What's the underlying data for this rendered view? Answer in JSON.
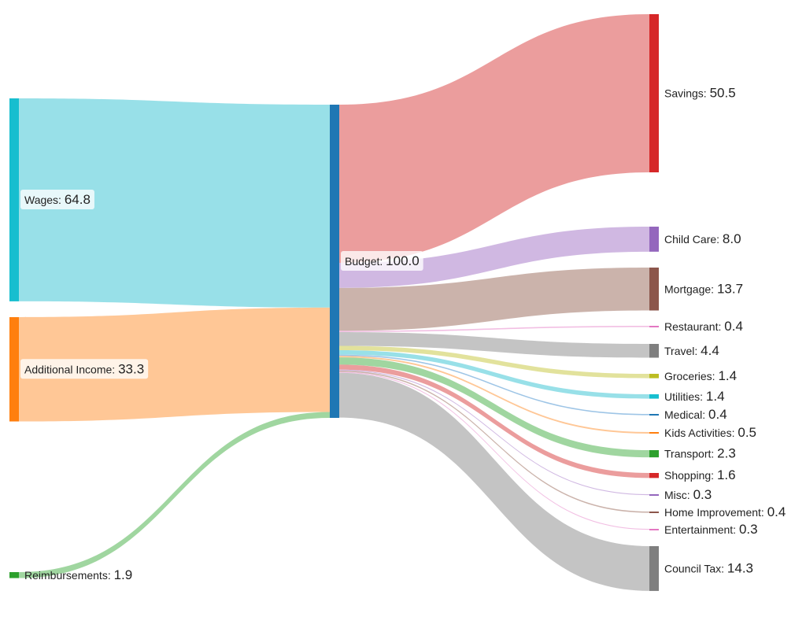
{
  "chart_data": {
    "type": "sankey",
    "title": "",
    "value_scale_total": 100.0,
    "nodes": [
      {
        "id": "wages",
        "name": "Wages",
        "value": "64.8",
        "num": 64.8,
        "column": 0,
        "color": "#17becf",
        "link_color": "#98e0e8",
        "label_box": true
      },
      {
        "id": "additional",
        "name": "Additional Income",
        "value": "33.3",
        "num": 33.3,
        "column": 0,
        "color": "#ff7f0e",
        "link_color": "#ffc796",
        "label_box": true
      },
      {
        "id": "reimb",
        "name": "Reimbursements",
        "value": "1.9",
        "num": 1.9,
        "column": 0,
        "color": "#2ca02c",
        "link_color": "#a0d6a0",
        "label_box": false
      },
      {
        "id": "budget",
        "name": "Budget",
        "value": "100.0",
        "num": 100.0,
        "column": 1,
        "color": "#1f77b4",
        "link_color": "#9ec5e6",
        "label_box": true
      },
      {
        "id": "savings",
        "name": "Savings",
        "value": "50.5",
        "num": 50.5,
        "column": 2,
        "color": "#d62728",
        "link_color": "#eb9d9d"
      },
      {
        "id": "childcare",
        "name": "Child Care",
        "value": "8.0",
        "num": 8.0,
        "column": 2,
        "color": "#9467bd",
        "link_color": "#d0b8e2"
      },
      {
        "id": "mortgage",
        "name": "Mortgage",
        "value": "13.7",
        "num": 13.7,
        "column": 2,
        "color": "#8c564b",
        "link_color": "#cbb3ab"
      },
      {
        "id": "restaurant",
        "name": "Restaurant",
        "value": "0.4",
        "num": 0.4,
        "column": 2,
        "color": "#e377c2",
        "link_color": "#f2bfe3"
      },
      {
        "id": "travel",
        "name": "Travel",
        "value": "4.4",
        "num": 4.4,
        "column": 2,
        "color": "#7f7f7f",
        "link_color": "#c4c4c4"
      },
      {
        "id": "groceries",
        "name": "Groceries",
        "value": "1.4",
        "num": 1.4,
        "column": 2,
        "color": "#bcbd22",
        "link_color": "#e2e29c"
      },
      {
        "id": "utilities",
        "name": "Utilities",
        "value": "1.4",
        "num": 1.4,
        "column": 2,
        "color": "#17becf",
        "link_color": "#98e0e8"
      },
      {
        "id": "medical",
        "name": "Medical",
        "value": "0.4",
        "num": 0.4,
        "column": 2,
        "color": "#1f77b4",
        "link_color": "#9ec5e6"
      },
      {
        "id": "kids",
        "name": "Kids Activities",
        "value": "0.5",
        "num": 0.5,
        "column": 2,
        "color": "#ff7f0e",
        "link_color": "#ffc796"
      },
      {
        "id": "transport",
        "name": "Transport",
        "value": "2.3",
        "num": 2.3,
        "column": 2,
        "color": "#2ca02c",
        "link_color": "#a0d6a0"
      },
      {
        "id": "shopping",
        "name": "Shopping",
        "value": "1.6",
        "num": 1.6,
        "column": 2,
        "color": "#d62728",
        "link_color": "#eb9d9d"
      },
      {
        "id": "misc",
        "name": "Misc",
        "value": "0.3",
        "num": 0.3,
        "column": 2,
        "color": "#9467bd",
        "link_color": "#d0b8e2"
      },
      {
        "id": "homeimp",
        "name": "Home Improvement",
        "value": "0.4",
        "num": 0.4,
        "column": 2,
        "color": "#8c564b",
        "link_color": "#cbb3ab"
      },
      {
        "id": "entertainment",
        "name": "Entertainment",
        "value": "0.3",
        "num": 0.3,
        "column": 2,
        "color": "#e377c2",
        "link_color": "#f2bfe3"
      },
      {
        "id": "counciltax",
        "name": "Council Tax",
        "value": "14.3",
        "num": 14.3,
        "column": 2,
        "color": "#7f7f7f",
        "link_color": "#c4c4c4"
      }
    ],
    "links": [
      {
        "source": "wages",
        "target": "budget",
        "value": 64.8
      },
      {
        "source": "additional",
        "target": "budget",
        "value": 33.3
      },
      {
        "source": "reimb",
        "target": "budget",
        "value": 1.9
      },
      {
        "source": "budget",
        "target": "savings",
        "value": 50.5
      },
      {
        "source": "budget",
        "target": "childcare",
        "value": 8.0
      },
      {
        "source": "budget",
        "target": "mortgage",
        "value": 13.7
      },
      {
        "source": "budget",
        "target": "restaurant",
        "value": 0.4
      },
      {
        "source": "budget",
        "target": "travel",
        "value": 4.4
      },
      {
        "source": "budget",
        "target": "groceries",
        "value": 1.4
      },
      {
        "source": "budget",
        "target": "utilities",
        "value": 1.4
      },
      {
        "source": "budget",
        "target": "medical",
        "value": 0.4
      },
      {
        "source": "budget",
        "target": "kids",
        "value": 0.5
      },
      {
        "source": "budget",
        "target": "transport",
        "value": 2.3
      },
      {
        "source": "budget",
        "target": "shopping",
        "value": 1.6
      },
      {
        "source": "budget",
        "target": "misc",
        "value": 0.3
      },
      {
        "source": "budget",
        "target": "homeimp",
        "value": 0.4
      },
      {
        "source": "budget",
        "target": "entertainment",
        "value": 0.3
      },
      {
        "source": "budget",
        "target": "counciltax",
        "value": 14.3
      }
    ]
  }
}
